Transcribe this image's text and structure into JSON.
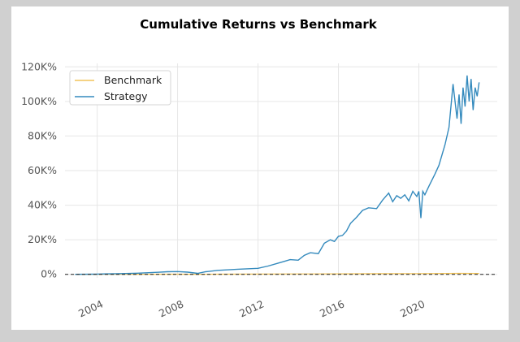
{
  "chart_data": {
    "type": "line",
    "title": "Cumulative Returns vs Benchmark",
    "xlabel": "",
    "ylabel": "",
    "x_ticks": [
      "2004",
      "2008",
      "2012",
      "2016",
      "2020"
    ],
    "y_ticks": [
      "0%",
      "20%K",
      "40%K",
      "60%K",
      "80%K",
      "100%K",
      "120%K"
    ],
    "y_tick_labels": [
      "0%",
      "20K%",
      "40K%",
      "60K%",
      "80K%",
      "100K%",
      "120K%"
    ],
    "y_tick_values": [
      0,
      20000,
      40000,
      60000,
      80000,
      100000,
      120000
    ],
    "xlim": [
      2002.4,
      2023.9
    ],
    "ylim": [
      -2000,
      122000
    ],
    "grid": true,
    "legend_position": "top-left",
    "series": [
      {
        "name": "Benchmark",
        "color": "#f2c45a",
        "x": [
          2002.9,
          2004,
          2006,
          2008,
          2009,
          2010,
          2012,
          2014,
          2016,
          2018,
          2020,
          2022,
          2023.0
        ],
        "values": [
          0,
          20,
          50,
          100,
          60,
          100,
          150,
          250,
          300,
          400,
          450,
          600,
          550
        ]
      },
      {
        "name": "Strategy",
        "color": "#348ABD",
        "x": [
          2002.9,
          2004.0,
          2005.0,
          2006.0,
          2007.0,
          2007.5,
          2008.0,
          2008.5,
          2009.0,
          2009.4,
          2010.0,
          2011.0,
          2012.0,
          2012.5,
          2013.0,
          2013.3,
          2013.6,
          2014.0,
          2014.3,
          2014.6,
          2015.0,
          2015.3,
          2015.6,
          2015.8,
          2016.0,
          2016.2,
          2016.4,
          2016.6,
          2016.9,
          2017.2,
          2017.5,
          2017.9,
          2018.2,
          2018.5,
          2018.7,
          2018.9,
          2019.1,
          2019.3,
          2019.5,
          2019.7,
          2019.9,
          2020.0,
          2020.1,
          2020.2,
          2020.3,
          2020.5,
          2020.8,
          2021.0,
          2021.3,
          2021.5,
          2021.7,
          2021.9,
          2022.0,
          2022.1,
          2022.2,
          2022.3,
          2022.4,
          2022.5,
          2022.6,
          2022.7,
          2022.8,
          2022.9,
          2023.0
        ],
        "values": [
          0,
          150,
          400,
          700,
          1200,
          1500,
          1600,
          1300,
          600,
          1500,
          2300,
          3000,
          3500,
          4800,
          6500,
          7500,
          8500,
          8200,
          11000,
          12500,
          12000,
          18000,
          20000,
          19000,
          22000,
          22500,
          25000,
          29500,
          33000,
          37000,
          38500,
          38000,
          43000,
          47000,
          42000,
          45500,
          44000,
          46000,
          42500,
          48000,
          45000,
          48000,
          32500,
          48000,
          46000,
          51000,
          58000,
          63000,
          75000,
          85000,
          110000,
          90000,
          104000,
          87000,
          108000,
          97000,
          115000,
          100000,
          113000,
          95000,
          108000,
          103000,
          111000
        ]
      }
    ]
  }
}
